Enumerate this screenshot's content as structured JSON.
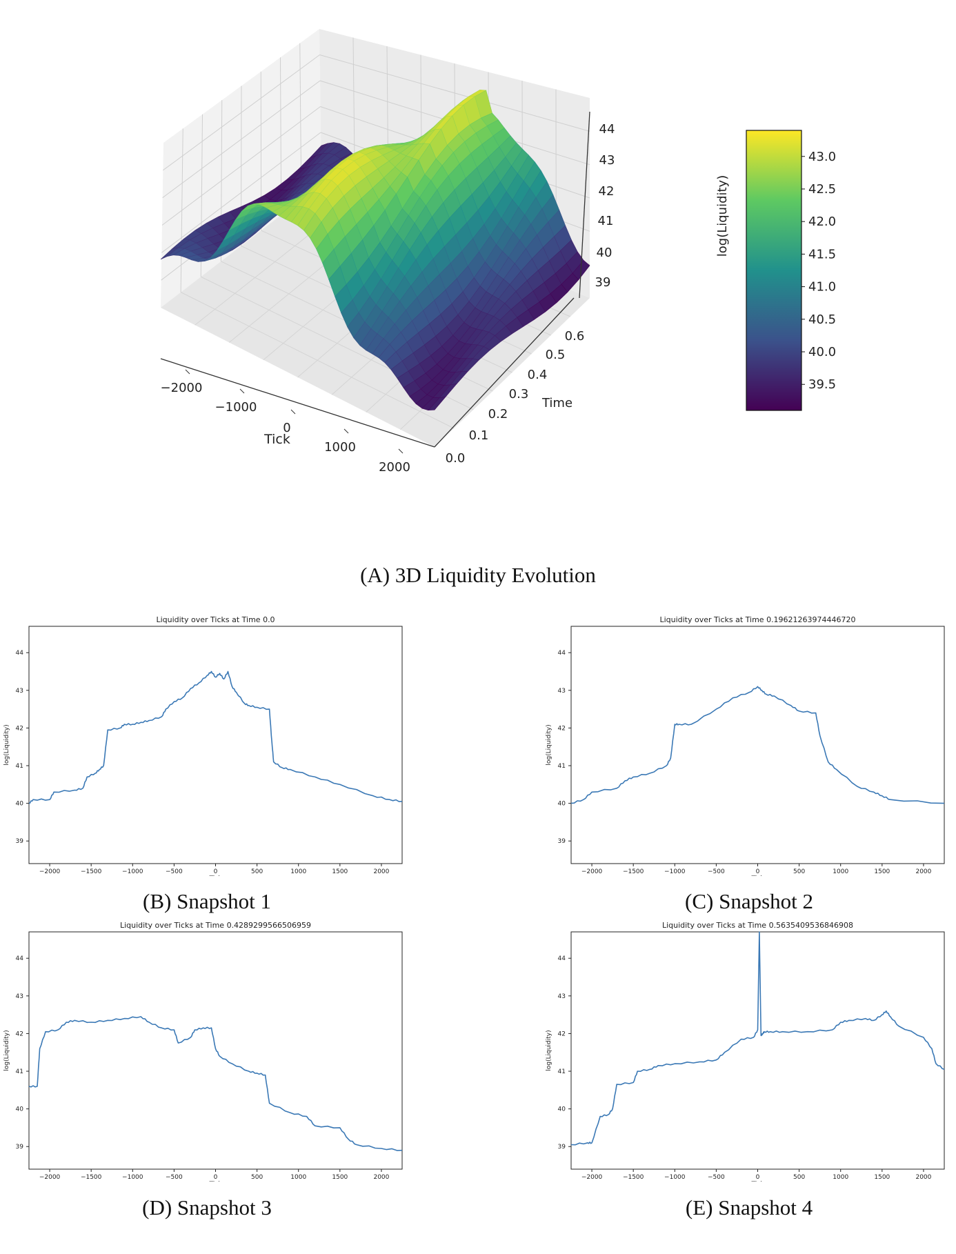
{
  "chart_data": [
    {
      "type": "surface3d",
      "caption_letter": "A",
      "caption_text": "3D Liquidity Evolution",
      "xlabel": "Tick",
      "ylabel": "Time",
      "zlabel": "log(Liquidity)",
      "xticks": [
        "−2000",
        "−1000",
        "0",
        "1000",
        "2000"
      ],
      "yticks": [
        "0.0",
        "0.1",
        "0.2",
        "0.3",
        "0.4",
        "0.5",
        "0.6"
      ],
      "zticks": [
        "39",
        "40",
        "41",
        "42",
        "43",
        "44"
      ],
      "colorbar_ticks": [
        "39.5",
        "40.0",
        "40.5",
        "41.0",
        "41.5",
        "42.0",
        "42.5",
        "43.0"
      ],
      "colormap": [
        "#440154",
        "#3b528b",
        "#21918c",
        "#5ec962",
        "#fde725"
      ],
      "xlim": [
        -2200,
        2200
      ],
      "ylim": [
        0,
        0.65
      ],
      "zlim": [
        38.5,
        44.3
      ],
      "clim": [
        39.1,
        43.4
      ]
    },
    {
      "type": "line",
      "caption_letter": "B",
      "caption_text": "Snapshot 1",
      "title": "Liquidity over Ticks at Time 0.0",
      "xlabel": "Tick",
      "ylabel": "log(Liquidity)",
      "xlim": [
        -2250,
        2250
      ],
      "ylim": [
        38.4,
        44.7
      ],
      "xticks": [
        -2000,
        -1500,
        -1000,
        -500,
        0,
        500,
        1000,
        1500,
        2000
      ],
      "yticks": [
        39,
        40,
        41,
        42,
        43,
        44
      ],
      "x": [
        -2250,
        -2200,
        -2000,
        -1950,
        -1700,
        -1600,
        -1550,
        -1450,
        -1400,
        -1350,
        -1300,
        -1150,
        -1100,
        -1000,
        -900,
        -800,
        -650,
        -600,
        -500,
        -400,
        -300,
        -200,
        -100,
        -50,
        0,
        50,
        100,
        150,
        200,
        250,
        350,
        400,
        500,
        650,
        680,
        700,
        800,
        900,
        1200,
        1500,
        1900,
        2100,
        2250
      ],
      "y": [
        40.0,
        40.1,
        40.1,
        40.3,
        40.35,
        40.4,
        40.7,
        40.8,
        40.9,
        41.0,
        41.95,
        42.0,
        42.1,
        42.1,
        42.15,
        42.2,
        42.3,
        42.5,
        42.7,
        42.8,
        43.05,
        43.2,
        43.4,
        43.5,
        43.35,
        43.45,
        43.3,
        43.5,
        43.1,
        42.95,
        42.65,
        42.6,
        42.55,
        42.5,
        41.6,
        41.1,
        40.95,
        40.9,
        40.7,
        40.5,
        40.2,
        40.1,
        40.05
      ]
    },
    {
      "type": "line",
      "caption_letter": "C",
      "caption_text": "Snapshot 2",
      "title": "Liquidity over Ticks at Time 0.19621263974446720",
      "xlabel": "Tick",
      "ylabel": "log(Liquidity)",
      "xlim": [
        -2250,
        2250
      ],
      "ylim": [
        38.4,
        44.7
      ],
      "xticks": [
        -2000,
        -1500,
        -1000,
        -500,
        0,
        500,
        1000,
        1500,
        2000
      ],
      "yticks": [
        39,
        40,
        41,
        42,
        43,
        44
      ],
      "x": [
        -2250,
        -2100,
        -2000,
        -1700,
        -1600,
        -1500,
        -1300,
        -1100,
        -1050,
        -1000,
        -950,
        -800,
        -500,
        -300,
        -100,
        0,
        50,
        100,
        200,
        400,
        500,
        700,
        750,
        850,
        950,
        1200,
        1400,
        1500,
        1600,
        2250
      ],
      "y": [
        40.0,
        40.1,
        40.3,
        40.4,
        40.6,
        40.7,
        40.8,
        41.0,
        41.2,
        42.1,
        42.1,
        42.1,
        42.5,
        42.8,
        42.95,
        43.1,
        43.0,
        42.9,
        42.85,
        42.6,
        42.45,
        42.4,
        41.8,
        41.1,
        40.9,
        40.45,
        40.3,
        40.2,
        40.1,
        40.0
      ]
    },
    {
      "type": "line",
      "caption_letter": "D",
      "caption_text": "Snapshot 3",
      "title": "Liquidity over Ticks at Time 0.4289299566506959",
      "xlabel": "Tick",
      "ylabel": "log(Liquidity)",
      "xlim": [
        -2250,
        2250
      ],
      "ylim": [
        38.4,
        44.7
      ],
      "xticks": [
        -2000,
        -1500,
        -1000,
        -500,
        0,
        500,
        1000,
        1500,
        2000
      ],
      "yticks": [
        39,
        40,
        41,
        42,
        43,
        44
      ],
      "x": [
        -2250,
        -2150,
        -2120,
        -2050,
        -1900,
        -1800,
        -1700,
        -1500,
        -1300,
        -1100,
        -900,
        -800,
        -650,
        -500,
        -450,
        -300,
        -250,
        -150,
        -50,
        0,
        50,
        200,
        400,
        500,
        600,
        650,
        900,
        1100,
        1200,
        1500,
        1600,
        1700,
        2000,
        2250
      ],
      "y": [
        40.6,
        40.6,
        41.6,
        42.05,
        42.1,
        42.3,
        42.35,
        42.3,
        42.35,
        42.4,
        42.45,
        42.3,
        42.15,
        42.1,
        41.75,
        41.9,
        42.1,
        42.15,
        42.15,
        41.6,
        41.4,
        41.2,
        41.0,
        40.95,
        40.9,
        40.15,
        39.9,
        39.8,
        39.55,
        39.5,
        39.2,
        39.05,
        38.95,
        38.9
      ]
    },
    {
      "type": "line",
      "caption_letter": "E",
      "caption_text": "Snapshot 4",
      "title": "Liquidity over Ticks at Time 0.5635409536846908",
      "xlabel": "Tick",
      "ylabel": "log(Liquidity)",
      "xlim": [
        -2250,
        2250
      ],
      "ylim": [
        38.4,
        44.7
      ],
      "xticks": [
        -2000,
        -1500,
        -1000,
        -500,
        0,
        500,
        1000,
        1500,
        2000
      ],
      "yticks": [
        39,
        40,
        41,
        42,
        43,
        44
      ],
      "x": [
        -2250,
        -2050,
        -2000,
        -1900,
        -1800,
        -1750,
        -1700,
        -1500,
        -1450,
        -1300,
        -1200,
        -1000,
        -700,
        -500,
        -400,
        -200,
        -50,
        0,
        20,
        40,
        60,
        80,
        150,
        300,
        600,
        900,
        1000,
        1100,
        1300,
        1400,
        1500,
        1550,
        1600,
        1700,
        2000,
        2100,
        2150,
        2250
      ],
      "y": [
        39.05,
        39.1,
        39.1,
        39.8,
        39.85,
        40.0,
        40.65,
        40.7,
        41.0,
        41.05,
        41.15,
        41.2,
        41.25,
        41.3,
        41.5,
        41.85,
        41.9,
        42.1,
        44.7,
        41.95,
        42.0,
        42.05,
        42.05,
        42.05,
        42.05,
        42.1,
        42.3,
        42.35,
        42.4,
        42.35,
        42.5,
        42.6,
        42.45,
        42.2,
        41.9,
        41.6,
        41.2,
        41.05
      ]
    }
  ]
}
